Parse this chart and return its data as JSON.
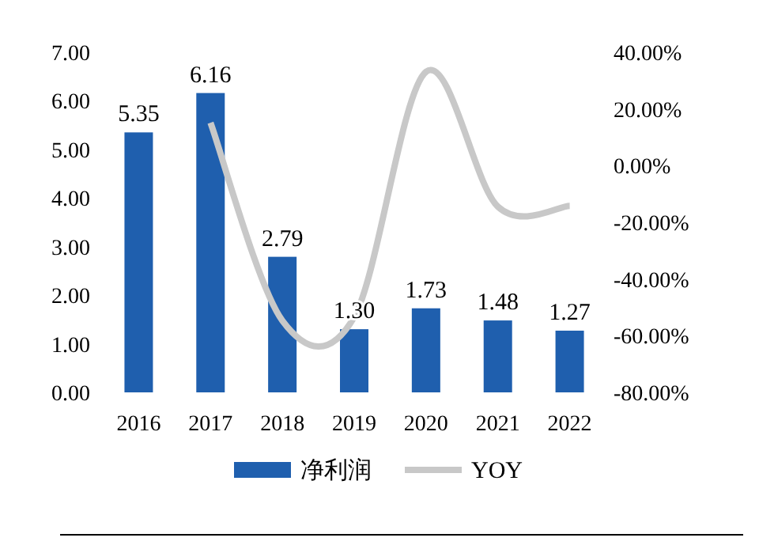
{
  "chart_data": {
    "type": "bar",
    "categories": [
      "2016",
      "2017",
      "2018",
      "2019",
      "2020",
      "2021",
      "2022"
    ],
    "series": [
      {
        "name": "净利润",
        "color": "#1f5fae",
        "value_labels": [
          "5.35",
          "6.16",
          "2.79",
          "1.30",
          "1.73",
          "1.48",
          "1.27"
        ],
        "values": [
          5.35,
          6.16,
          2.79,
          1.3,
          1.73,
          1.48,
          1.27
        ]
      },
      {
        "name": "YOY",
        "type": "line",
        "axis": "y2",
        "color": "#c8c8c8",
        "values": [
          null,
          15.1,
          -54.7,
          -53.4,
          33.1,
          -14.5,
          -14.2
        ]
      }
    ],
    "ylim": [
      0,
      7
    ],
    "yticks": [
      {
        "value": 0,
        "label": "0.00"
      },
      {
        "value": 1,
        "label": "1.00"
      },
      {
        "value": 2,
        "label": "2.00"
      },
      {
        "value": 3,
        "label": "3.00"
      },
      {
        "value": 4,
        "label": "4.00"
      },
      {
        "value": 5,
        "label": "5.00"
      },
      {
        "value": 6,
        "label": "6.00"
      },
      {
        "value": 7,
        "label": "7.00"
      }
    ],
    "y2lim": [
      -80,
      40
    ],
    "y2ticks": [
      {
        "value": -80,
        "label": "-80.00%"
      },
      {
        "value": -60,
        "label": "-60.00%"
      },
      {
        "value": -40,
        "label": "-40.00%"
      },
      {
        "value": -20,
        "label": "-20.00%"
      },
      {
        "value": 0,
        "label": "0.00%"
      },
      {
        "value": 20,
        "label": "20.00%"
      },
      {
        "value": 40,
        "label": "40.00%"
      }
    ],
    "legend": "bottom",
    "grid": false,
    "marker": "none"
  }
}
